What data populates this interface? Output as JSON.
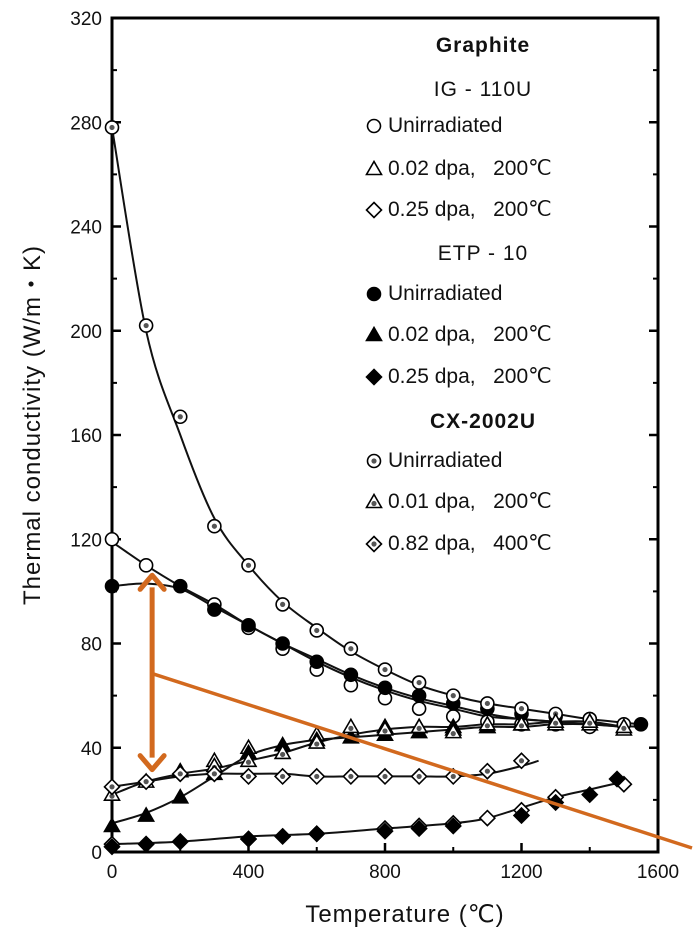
{
  "chart_data": {
    "type": "scatter",
    "xlabel": "Temperature (℃)",
    "ylabel": "Thermal conductivity (W/m・K)",
    "xlim": [
      0,
      1600
    ],
    "ylim": [
      0,
      320
    ],
    "xticks": [
      0,
      400,
      800,
      1200,
      1600
    ],
    "yticks": [
      0,
      40,
      80,
      120,
      160,
      200,
      240,
      280,
      320
    ],
    "grid": false,
    "legend_position": "top-right",
    "legend_title": "Graphite",
    "groups": [
      {
        "name": "IG - 110U",
        "series_indices": [
          0,
          1,
          2
        ]
      },
      {
        "name": "ETP - 10",
        "series_indices": [
          3,
          4,
          5
        ]
      },
      {
        "name": "CX-2002U",
        "series_indices": [
          6,
          7,
          8
        ]
      }
    ],
    "series": [
      {
        "name": "Unirradiated",
        "group": "IG - 110U",
        "marker": "circle-open",
        "x": [
          0,
          100,
          300,
          400,
          500,
          600,
          700,
          800,
          900,
          1000,
          1100,
          1200,
          1300,
          1400
        ],
        "y": [
          120,
          110,
          95,
          86,
          78,
          70,
          64,
          59,
          55,
          52,
          50,
          49,
          49,
          48
        ]
      },
      {
        "name": "0.02 dpa,   200℃",
        "group": "IG - 110U",
        "marker": "triangle-open",
        "x": [
          300,
          400,
          600,
          700,
          800,
          900,
          1000,
          1100,
          1200,
          1300,
          1400,
          1500
        ],
        "y": [
          35,
          40,
          45,
          47,
          48,
          48,
          48,
          48,
          49,
          49,
          49,
          47
        ]
      },
      {
        "name": "0.25 dpa,   200℃",
        "group": "IG - 110U",
        "marker": "diamond-open",
        "x": [
          0,
          100,
          200,
          400,
          600,
          800,
          900,
          1000,
          1100,
          1200,
          1300,
          1500
        ],
        "y": [
          3,
          3,
          4,
          5,
          7,
          9,
          10,
          11,
          13,
          16,
          21,
          26
        ]
      },
      {
        "name": "Unirradiated",
        "group": "ETP - 10",
        "marker": "circle-filled",
        "x": [
          0,
          200,
          300,
          400,
          500,
          600,
          700,
          800,
          900,
          1000,
          1100,
          1200,
          1300,
          1400,
          1550
        ],
        "y": [
          102,
          102,
          93,
          87,
          80,
          73,
          68,
          63,
          60,
          57,
          55,
          53,
          52,
          51,
          49
        ]
      },
      {
        "name": "0.02 dpa,   200℃",
        "group": "ETP - 10",
        "marker": "triangle-filled",
        "x": [
          0,
          100,
          200,
          300,
          400,
          500,
          600,
          700,
          800,
          900,
          1000,
          1100,
          1200
        ],
        "y": [
          10,
          14,
          21,
          30,
          38,
          41,
          43,
          44,
          45,
          46,
          47,
          48,
          49
        ]
      },
      {
        "name": "0.25 dpa,   200℃",
        "group": "ETP - 10",
        "marker": "diamond-filled",
        "x": [
          0,
          100,
          200,
          400,
          500,
          600,
          800,
          900,
          1000,
          1200,
          1300,
          1400,
          1480
        ],
        "y": [
          2,
          3,
          4,
          5,
          6,
          7,
          8,
          9,
          10,
          14,
          19,
          22,
          28
        ]
      },
      {
        "name": "Unirradiated",
        "group": "CX-2002U",
        "marker": "circle-dotted",
        "x": [
          0,
          100,
          200,
          300,
          400,
          500,
          600,
          700,
          800,
          900,
          1000,
          1100,
          1200,
          1300,
          1400,
          1500
        ],
        "y": [
          278,
          202,
          167,
          125,
          110,
          95,
          85,
          78,
          70,
          65,
          60,
          57,
          55,
          53,
          51,
          49
        ]
      },
      {
        "name": "0.01 dpa,   200℃",
        "group": "CX-2002U",
        "marker": "triangle-dotted",
        "x": [
          0,
          100,
          200,
          300,
          400,
          500,
          600,
          700,
          800,
          900,
          1000,
          1100,
          1200,
          1300,
          1400,
          1500
        ],
        "y": [
          22,
          27,
          31,
          33,
          35,
          38,
          42,
          48,
          47,
          48,
          46,
          49,
          49,
          50,
          50,
          48
        ]
      },
      {
        "name": "0.82 dpa,   400℃",
        "group": "CX-2002U",
        "marker": "diamond-dotted",
        "x": [
          0,
          100,
          200,
          300,
          400,
          500,
          600,
          700,
          800,
          900,
          1000,
          1100,
          1200
        ],
        "y": [
          25,
          27,
          30,
          30,
          29,
          29,
          29,
          29,
          29,
          29,
          29,
          31,
          35
        ]
      }
    ],
    "fit_lines": [
      {
        "x": [
          0,
          100,
          200,
          300,
          400,
          500,
          600,
          700,
          800,
          900,
          1000,
          1100,
          1200,
          1300,
          1400,
          1550
        ],
        "y": [
          278,
          200,
          160,
          128,
          110,
          96,
          86,
          77,
          70,
          64,
          60,
          57,
          55,
          53,
          51,
          49
        ]
      },
      {
        "x": [
          0,
          100,
          200,
          300,
          400,
          500,
          600,
          700,
          800,
          900,
          1000,
          1100,
          1200,
          1300,
          1400,
          1550
        ],
        "y": [
          119,
          110,
          102,
          95,
          87,
          80,
          73,
          67,
          62,
          58,
          55,
          52,
          51,
          50,
          49,
          48
        ]
      },
      {
        "x": [
          0,
          100,
          200,
          300,
          400,
          500,
          600,
          700,
          800,
          900,
          1000,
          1100,
          1200,
          1300,
          1400,
          1500
        ],
        "y": [
          102,
          103,
          101,
          94,
          87,
          80,
          74,
          68,
          63,
          59,
          56,
          53,
          51,
          50,
          49,
          48
        ]
      },
      {
        "x": [
          0,
          100,
          200,
          300,
          400,
          500,
          600,
          700,
          800,
          900,
          1000,
          1100,
          1200,
          1300,
          1400,
          1500
        ],
        "y": [
          11,
          15,
          21,
          29,
          37,
          41,
          43,
          44,
          45,
          46,
          47,
          48,
          48,
          49,
          49,
          48
        ]
      },
      {
        "x": [
          0,
          100,
          200,
          300,
          400,
          500,
          600,
          700,
          800,
          900,
          1000,
          1100,
          1200,
          1300,
          1400,
          1500
        ],
        "y": [
          22,
          27,
          30,
          32,
          35,
          38,
          42,
          45,
          47,
          48,
          48,
          49,
          49,
          50,
          50,
          48
        ]
      },
      {
        "x": [
          0,
          100,
          200,
          300,
          400,
          500,
          600,
          700,
          800,
          900,
          1000,
          1100,
          1200,
          1250
        ],
        "y": [
          25,
          27,
          29,
          30,
          30,
          30,
          29,
          29,
          29,
          29,
          29,
          30,
          33,
          35
        ]
      },
      {
        "x": [
          0,
          200,
          400,
          600,
          800,
          1000,
          1100,
          1200,
          1300,
          1400,
          1500
        ],
        "y": [
          3,
          4,
          6,
          7,
          9,
          11,
          13,
          17,
          21,
          24,
          27
        ]
      }
    ],
    "annotations": {
      "arrow_color": "#d2691e",
      "double_arrow": {
        "x": 100,
        "y_top": 110,
        "y_bottom": 27
      },
      "pointer_line": {
        "x_start": 100,
        "y_start": 70
      }
    }
  }
}
